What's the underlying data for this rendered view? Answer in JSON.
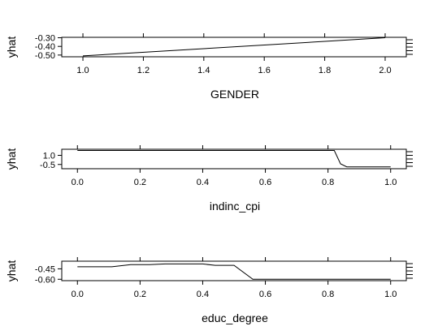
{
  "chart_data": [
    {
      "type": "line",
      "title": "",
      "xlabel": "GENDER",
      "ylabel": "yhat",
      "xlim": [
        0.93,
        2.07
      ],
      "ylim": [
        -0.52,
        -0.295
      ],
      "x_ticks": [
        1.0,
        1.2,
        1.4,
        1.6,
        1.8,
        2.0
      ],
      "x_tick_labels": [
        "1.0",
        "1.2",
        "1.4",
        "1.6",
        "1.8",
        "2.0"
      ],
      "y_ticks": [
        -0.3,
        -0.4,
        -0.5
      ],
      "y_tick_labels": [
        "-0.30",
        "-0.40",
        "-0.50"
      ],
      "grid": false,
      "series": [
        {
          "x": [
            1.0,
            2.0
          ],
          "y": [
            -0.51,
            -0.3
          ]
        }
      ]
    },
    {
      "type": "line",
      "title": "",
      "xlabel": "indinc_cpi",
      "ylabel": "yhat",
      "xlim": [
        -0.05,
        1.05
      ],
      "ylim": [
        -1.2,
        2.0
      ],
      "x_ticks": [
        0.0,
        0.2,
        0.4,
        0.6,
        0.8,
        1.0
      ],
      "x_tick_labels": [
        "0.0",
        "0.2",
        "0.4",
        "0.6",
        "0.8",
        "1.0"
      ],
      "y_ticks": [
        1.0,
        -0.5
      ],
      "y_tick_labels": [
        "1.0",
        "-0.5"
      ],
      "grid": false,
      "series": [
        {
          "x": [
            0.0,
            0.82,
            0.84,
            0.86,
            1.0
          ],
          "y": [
            1.8,
            1.8,
            -0.4,
            -0.9,
            -0.9
          ]
        }
      ]
    },
    {
      "type": "line",
      "title": "",
      "xlabel": "educ_degree",
      "ylabel": "yhat",
      "xlim": [
        -0.05,
        1.05
      ],
      "ylim": [
        -0.62,
        -0.34
      ],
      "x_ticks": [
        0.0,
        0.2,
        0.4,
        0.6,
        0.8,
        1.0
      ],
      "x_tick_labels": [
        "0.0",
        "0.2",
        "0.4",
        "0.6",
        "0.8",
        "1.0"
      ],
      "y_ticks": [
        -0.45,
        -0.6
      ],
      "y_tick_labels": [
        "-0.45",
        "-0.60"
      ],
      "grid": false,
      "series": [
        {
          "x": [
            0.0,
            0.11,
            0.17,
            0.23,
            0.28,
            0.4,
            0.44,
            0.5,
            0.56,
            1.0
          ],
          "y": [
            -0.42,
            -0.42,
            -0.39,
            -0.39,
            -0.38,
            -0.38,
            -0.4,
            -0.4,
            -0.6,
            -0.6
          ]
        }
      ]
    }
  ]
}
